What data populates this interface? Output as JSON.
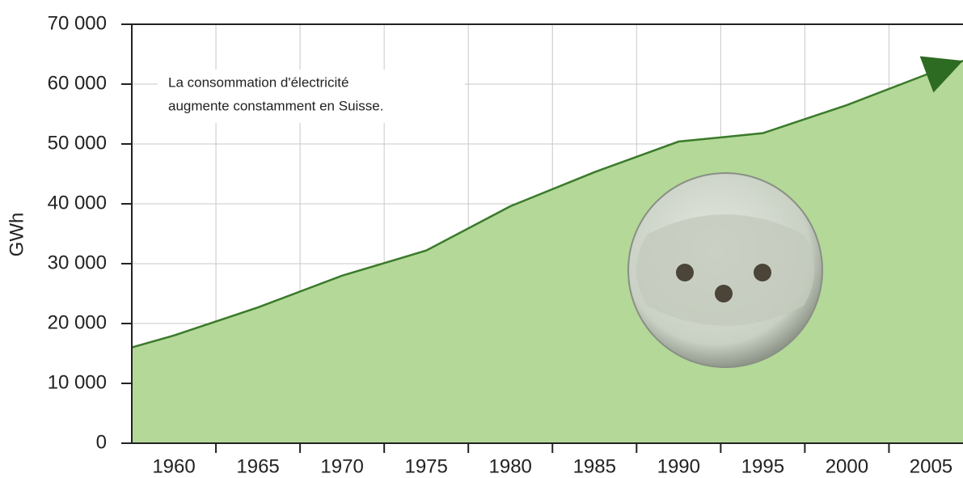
{
  "chart_data": {
    "type": "area",
    "y_label": "GWh",
    "annotation": [
      "La consommation d'électricité",
      "augmente constamment en Suisse."
    ],
    "x": [
      1957.5,
      1960,
      1965,
      1970,
      1975,
      1980,
      1985,
      1990,
      1995,
      2000,
      2005,
      2006.9
    ],
    "series": [
      {
        "name": "GWh",
        "color": "#b3d898",
        "values": [
          16000,
          18000,
          22700,
          28000,
          32200,
          39600,
          45300,
          50400,
          51800,
          56500,
          61900,
          63900
        ]
      }
    ],
    "line_color": "#3a7a2a",
    "xlim": [
      1957.5,
      2006.9
    ],
    "xticks": [
      1960,
      1965,
      1970,
      1975,
      1980,
      1985,
      1990,
      1995,
      2000,
      2005
    ],
    "ylim": [
      0,
      70000
    ],
    "yticks": [
      0,
      {
        "value": 10000,
        "label": "10 000"
      },
      {
        "value": 20000,
        "label": "20 000"
      },
      {
        "value": 30000,
        "label": "30 000"
      },
      {
        "value": 40000,
        "label": "40 000"
      },
      {
        "value": 50000,
        "label": "50 000"
      },
      {
        "value": 60000,
        "label": "60 000"
      },
      {
        "value": 70000,
        "label": "70 000"
      }
    ],
    "grid": true
  }
}
